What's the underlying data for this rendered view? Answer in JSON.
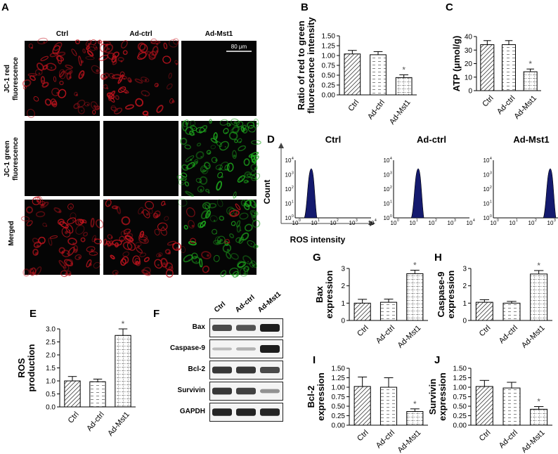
{
  "panels": {
    "A": "A",
    "B": "B",
    "C": "C",
    "D": "D",
    "E": "E",
    "F": "F",
    "G": "G",
    "H": "H",
    "I": "I",
    "J": "J"
  },
  "micro": {
    "columns": [
      "Ctrl",
      "Ad-ctrl",
      "Ad-Mst1"
    ],
    "rows": [
      {
        "l1": "JC-1 red",
        "l2": "fluorescence"
      },
      {
        "l1": "JC-1 green",
        "l2": "fluorescence"
      },
      {
        "l1": "Merged",
        "l2": ""
      }
    ],
    "scalebar": "80 μm",
    "colors": {
      "red": "#c0141e",
      "green": "#1ea81e"
    }
  },
  "flow": {
    "titles": [
      "Ctrl",
      "Ad-ctrl",
      "Ad-Mst1"
    ],
    "ylabel": "Count",
    "xlabel": "ROS intensity",
    "peaks": [
      0.85,
      1.3,
      3.0
    ],
    "fill": "#141a6e"
  },
  "western": {
    "lanes": [
      "Ctrl",
      "Ad-ctrl",
      "Ad-Mst1"
    ],
    "bands": [
      {
        "name": "Bax",
        "i": [
          0.75,
          0.7,
          1.0
        ]
      },
      {
        "name": "Caspase-9",
        "i": [
          0.12,
          0.18,
          1.0
        ]
      },
      {
        "name": "Bcl-2",
        "i": [
          0.85,
          0.85,
          0.75
        ]
      },
      {
        "name": "Survivin",
        "i": [
          0.85,
          0.8,
          0.35
        ]
      },
      {
        "name": "GAPDH",
        "i": [
          0.95,
          0.95,
          0.95
        ]
      }
    ]
  },
  "chart_data": [
    {
      "id": "B",
      "type": "bar",
      "categories": [
        "Ctrl",
        "Ad-ctrl",
        "Ad-Mst1"
      ],
      "values": [
        1.04,
        1.02,
        0.44
      ],
      "errors": [
        0.09,
        0.08,
        0.07
      ],
      "sig": [
        false,
        false,
        true
      ],
      "ylabel_lines": [
        "Ratio of red to green",
        "fluorescence intensity"
      ],
      "ylim": [
        0,
        1.5
      ],
      "ticks": [
        "0.00",
        "0.25",
        "0.50",
        "0.75",
        "1.00",
        "1.25",
        "1.50"
      ]
    },
    {
      "id": "C",
      "type": "bar",
      "categories": [
        "Ctrl",
        "Ad-ctrl",
        "Ad-Mst1"
      ],
      "values": [
        34,
        34,
        14
      ],
      "errors": [
        3,
        3,
        2
      ],
      "sig": [
        false,
        false,
        true
      ],
      "ylabel_lines": [
        "ATP (μmol/g)"
      ],
      "ylim": [
        0,
        40
      ],
      "ticks": [
        "0",
        "10",
        "20",
        "30",
        "40"
      ]
    },
    {
      "id": "E",
      "type": "bar",
      "categories": [
        "Ctrl",
        "Ad-ctrl",
        "Ad-Mst1"
      ],
      "values": [
        1.0,
        0.97,
        2.75
      ],
      "errors": [
        0.17,
        0.1,
        0.25
      ],
      "sig": [
        false,
        false,
        true
      ],
      "ylabel_lines": [
        "ROS",
        "production"
      ],
      "ylim": [
        0,
        3.0
      ],
      "ticks": [
        "0.0",
        "0.5",
        "1.0",
        "1.5",
        "2.0",
        "2.5",
        "3.0"
      ]
    },
    {
      "id": "G",
      "type": "bar",
      "categories": [
        "Ctrl",
        "Ad-ctrl",
        "Ad-Mst1"
      ],
      "values": [
        1.0,
        1.05,
        2.7
      ],
      "errors": [
        0.22,
        0.18,
        0.2
      ],
      "sig": [
        false,
        false,
        true
      ],
      "ylabel_lines": [
        "Bax",
        "expression"
      ],
      "ylim": [
        0,
        3
      ],
      "ticks": [
        "0",
        "1",
        "2",
        "3"
      ]
    },
    {
      "id": "H",
      "type": "bar",
      "categories": [
        "Ctrl",
        "Ad-ctrl",
        "Ad-Mst1"
      ],
      "values": [
        1.05,
        1.0,
        2.68
      ],
      "errors": [
        0.15,
        0.1,
        0.2
      ],
      "sig": [
        false,
        false,
        true
      ],
      "ylabel_lines": [
        "Caspase-9",
        "expression"
      ],
      "ylim": [
        0,
        3
      ],
      "ticks": [
        "0",
        "1",
        "2",
        "3"
      ]
    },
    {
      "id": "I",
      "type": "bar",
      "categories": [
        "Ctrl",
        "Ad-ctrl",
        "Ad-Mst1"
      ],
      "values": [
        1.02,
        1.0,
        0.36
      ],
      "errors": [
        0.25,
        0.25,
        0.07
      ],
      "sig": [
        false,
        false,
        true
      ],
      "ylabel_lines": [
        "Bcl-2",
        "expression"
      ],
      "ylim": [
        0,
        1.5
      ],
      "ticks": [
        "0.00",
        "0.25",
        "0.50",
        "0.75",
        "1.00",
        "1.25",
        "1.50"
      ]
    },
    {
      "id": "J",
      "type": "bar",
      "categories": [
        "Ctrl",
        "Ad-ctrl",
        "Ad-Mst1"
      ],
      "values": [
        1.02,
        0.98,
        0.42
      ],
      "errors": [
        0.16,
        0.15,
        0.07
      ],
      "sig": [
        false,
        false,
        true
      ],
      "ylabel_lines": [
        "Survivin",
        "expression"
      ],
      "ylim": [
        0,
        1.5
      ],
      "ticks": [
        "0.00",
        "0.25",
        "0.50",
        "0.75",
        "1.00",
        "1.25",
        "1.50"
      ]
    }
  ],
  "sig_mark": "*"
}
